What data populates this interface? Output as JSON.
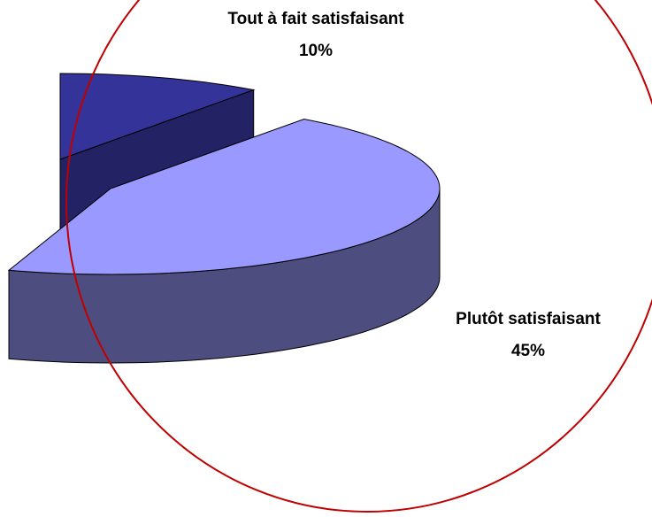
{
  "chart_data": {
    "type": "pie3d",
    "categories": [
      "Tout à fait satisfaisant",
      "Plutôt satisfaisant"
    ],
    "values": [
      10,
      45
    ],
    "value_labels": [
      "10%",
      "45%"
    ],
    "colors": [
      "#333399",
      "#9999ff"
    ]
  }
}
